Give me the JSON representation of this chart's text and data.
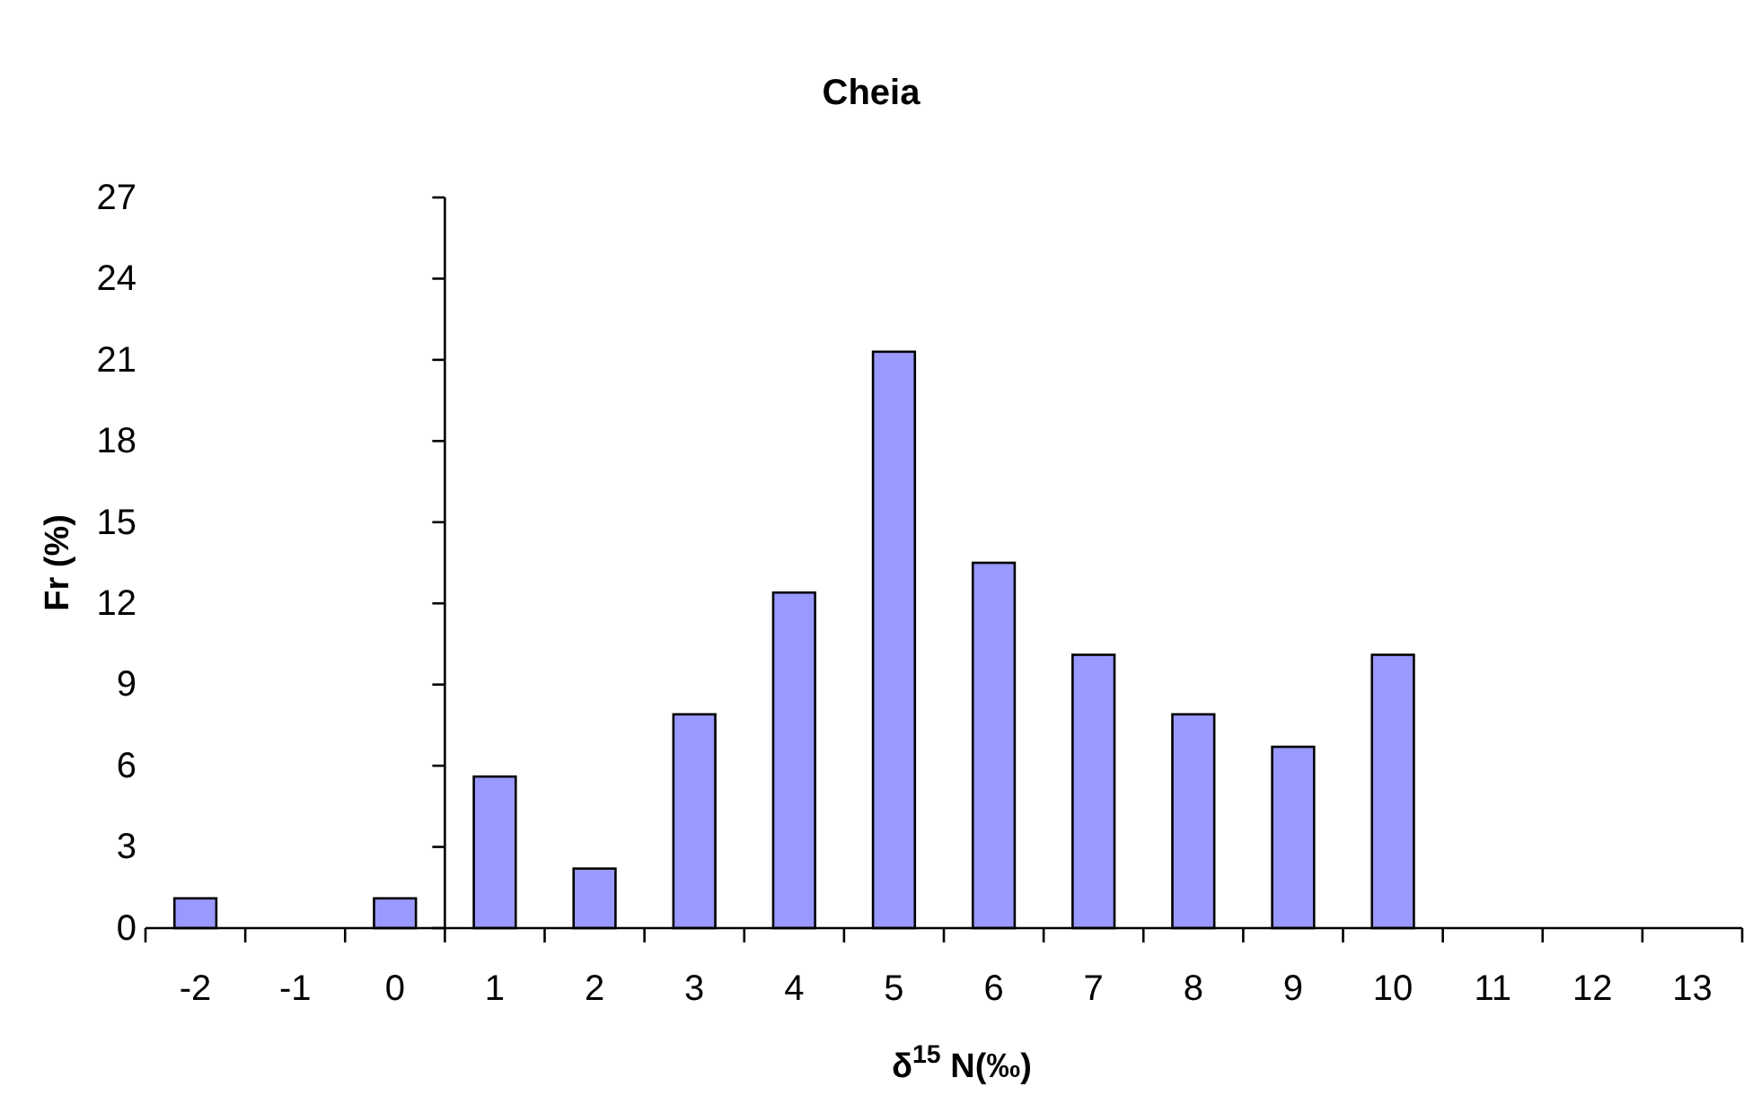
{
  "chart_data": {
    "type": "bar",
    "title": "Cheia",
    "xlabel": "δ$^{15}$ N(‰)",
    "ylabel": "Fr (%)",
    "categories": [
      "-2",
      "-1",
      "0",
      "1",
      "2",
      "3",
      "4",
      "5",
      "6",
      "7",
      "8",
      "9",
      "10",
      "11",
      "12",
      "13"
    ],
    "values": [
      1.1,
      0,
      1.1,
      5.6,
      2.2,
      7.9,
      12.4,
      21.3,
      13.5,
      10.1,
      7.9,
      6.7,
      10.1,
      0,
      0,
      0
    ],
    "color": "#9999ff",
    "ylim": [
      0,
      27
    ],
    "yticks": [
      0,
      3,
      6,
      9,
      12,
      15,
      18,
      21,
      24,
      27
    ],
    "grid": false
  }
}
